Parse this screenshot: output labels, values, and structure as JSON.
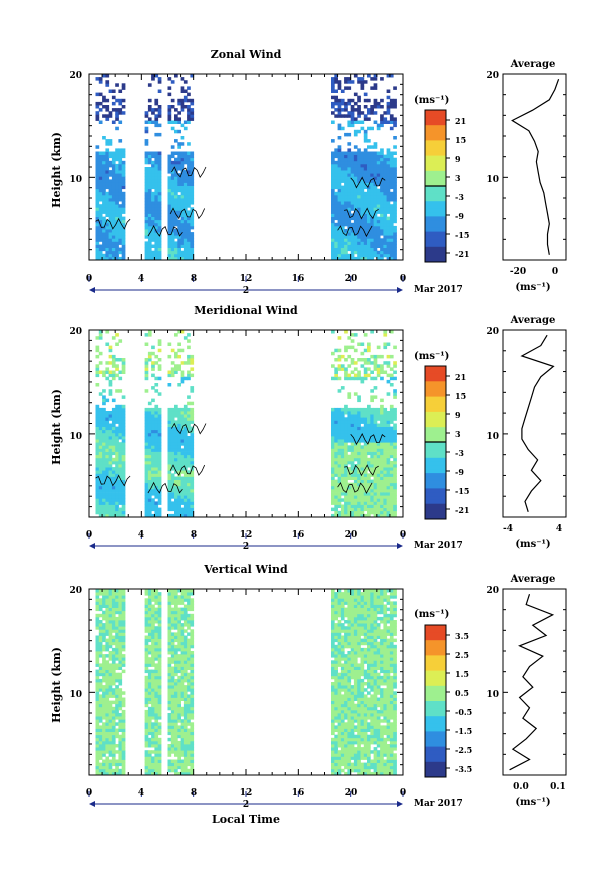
{
  "chart_data": [
    {
      "type": "heatmap",
      "title": "Zonal Wind",
      "ylabel": "Height (km)",
      "xlabel": "",
      "x_ticks": [
        "0",
        "4",
        "8",
        "12",
        "16",
        "20",
        "0"
      ],
      "y_ticks": [
        "20",
        "10"
      ],
      "ylim": [
        2,
        20
      ],
      "xlim": [
        0,
        24
      ],
      "colorbar": {
        "unit": "(ms⁻¹)",
        "ticks": [
          "21",
          "15",
          "9",
          "3",
          "-3",
          "-9",
          "-15",
          "-21"
        ],
        "range": [
          -24,
          24
        ],
        "zero_line": true
      },
      "profile": {
        "title": "Average",
        "x_ticks": [
          "-20",
          "0"
        ],
        "xlim": [
          -30,
          4
        ],
        "unit": "(ms⁻¹)",
        "y_ticks": [
          "20",
          "10"
        ],
        "heights": [
          2.5,
          3.5,
          4.5,
          5.5,
          6.5,
          7.5,
          8.5,
          9.5,
          10.5,
          11.5,
          12.5,
          13.5,
          14.5,
          15.5,
          16.5,
          17.5,
          18.5,
          19.5
        ],
        "values": [
          -5,
          -6,
          -6,
          -5,
          -6,
          -7,
          -8,
          -10,
          -11,
          -12,
          -11,
          -13,
          -16,
          -25,
          -14,
          -5,
          -2,
          0
        ]
      }
    },
    {
      "type": "heatmap",
      "title": "Meridional Wind",
      "ylabel": "Height (km)",
      "xlabel": "",
      "x_ticks": [
        "0",
        "4",
        "8",
        "12",
        "16",
        "20",
        "0"
      ],
      "y_ticks": [
        "20",
        "10"
      ],
      "ylim": [
        2,
        20
      ],
      "xlim": [
        0,
        24
      ],
      "colorbar": {
        "unit": "(ms⁻¹)",
        "ticks": [
          "21",
          "15",
          "9",
          "3",
          "-3",
          "-9",
          "-15",
          "-21"
        ],
        "range": [
          -24,
          24
        ],
        "zero_line": true
      },
      "profile": {
        "title": "Average",
        "x_ticks": [
          "-4",
          "4"
        ],
        "xlim": [
          -5,
          5
        ],
        "unit": "(ms⁻¹)",
        "y_ticks": [
          "20",
          "10"
        ],
        "heights": [
          2.5,
          3.5,
          4.5,
          5.5,
          6.5,
          7.5,
          8.5,
          9.5,
          10.5,
          11.5,
          12.5,
          13.5,
          14.5,
          15.5,
          16.5,
          17.5,
          18.5,
          19.5
        ],
        "values": [
          -1,
          -1.5,
          -0.5,
          1,
          -0.5,
          0.5,
          -1,
          -2,
          -2,
          -1.5,
          -1,
          -0.5,
          0,
          1,
          3,
          -2,
          1,
          2
        ]
      }
    },
    {
      "type": "heatmap",
      "title": "Vertical Wind",
      "ylabel": "Height (km)",
      "xlabel": "Local Time",
      "x_ticks": [
        "0",
        "4",
        "8",
        "12",
        "16",
        "20",
        "0"
      ],
      "y_ticks": [
        "20",
        "10"
      ],
      "ylim": [
        2,
        20
      ],
      "xlim": [
        0,
        24
      ],
      "colorbar": {
        "unit": "(ms⁻¹)",
        "ticks": [
          "3.5",
          "2.5",
          "1.5",
          "0.5",
          "-0.5",
          "-1.5",
          "-2.5",
          "-3.5"
        ],
        "range": [
          -4,
          4
        ],
        "zero_line": false
      },
      "profile": {
        "title": "Average",
        "x_ticks": [
          "0.0",
          "0.1"
        ],
        "xlim": [
          -0.06,
          0.13
        ],
        "unit": "(ms⁻¹)",
        "y_ticks": [
          "20",
          "10"
        ],
        "heights": [
          2.5,
          3.5,
          4.5,
          5.5,
          6.5,
          7.5,
          8.5,
          9.5,
          10.5,
          11.5,
          12.5,
          13.5,
          14.5,
          15.5,
          16.5,
          17.5,
          18.5,
          19.5
        ],
        "values": [
          -0.04,
          0.02,
          -0.03,
          0.01,
          0.04,
          0.0,
          0.02,
          -0.01,
          0.03,
          0.0,
          0.02,
          0.06,
          -0.01,
          0.07,
          0.03,
          0.09,
          0.01,
          0.02
        ]
      }
    }
  ],
  "date_axis": {
    "day_label": "2",
    "month_label": "Mar 2017"
  },
  "colors": {
    "colormap": [
      "#2c3a8a",
      "#2f5cc2",
      "#2f8ee0",
      "#35c1ec",
      "#5fe0c7",
      "#9ef08f",
      "#dcee55",
      "#f6cf39",
      "#f5942a",
      "#e64b26"
    ],
    "contour": "#000000",
    "axis": "#000000",
    "date_arrow": "#1a2a8a"
  }
}
